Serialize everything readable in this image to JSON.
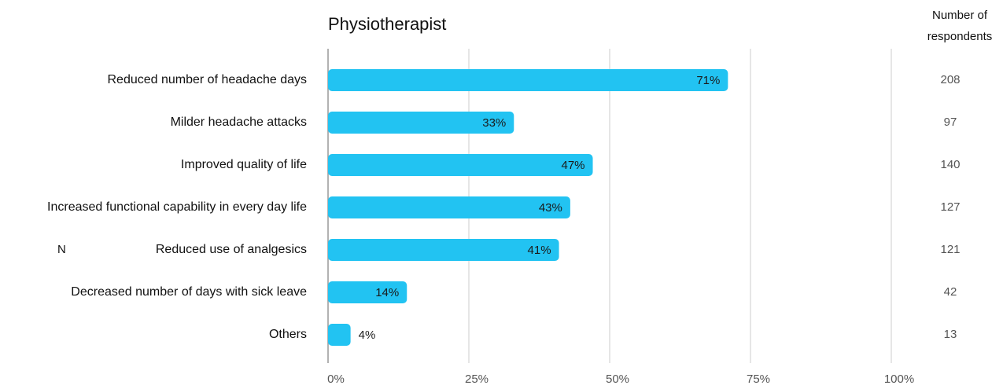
{
  "chart_data": {
    "type": "bar",
    "orientation": "horizontal",
    "title": "Physiotherapist",
    "categories": [
      "Reduced number of headache days",
      "Milder headache attacks",
      "Improved quality of life",
      "Increased functional capability in every day life",
      "Reduced use of analgesics",
      "Decreased number of days with sick leave",
      "Others"
    ],
    "values": [
      71,
      33,
      47,
      43,
      41,
      14,
      4
    ],
    "value_labels": [
      "71%",
      "33%",
      "47%",
      "43%",
      "41%",
      "14%",
      "4%"
    ],
    "color": "#22c3f2",
    "xlim": [
      0,
      100
    ],
    "xticks": [
      {
        "value": 0,
        "label": "0%"
      },
      {
        "value": 25,
        "label": "25%"
      },
      {
        "value": 50,
        "label": "50%"
      },
      {
        "value": 75,
        "label": "75%"
      },
      {
        "value": 100,
        "label": "100%"
      }
    ],
    "grid": true,
    "respondents_title": [
      "Number of",
      "respondents"
    ],
    "respondents": [
      208,
      97,
      140,
      127,
      121,
      42,
      13
    ],
    "annotations": [
      "N"
    ]
  }
}
